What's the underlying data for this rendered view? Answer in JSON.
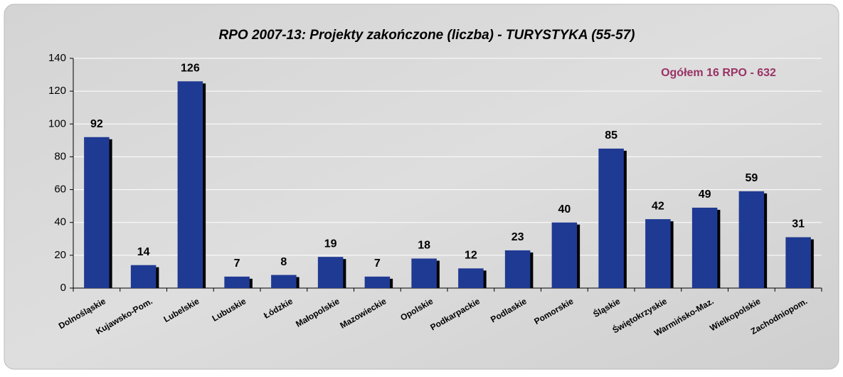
{
  "chart_data": {
    "type": "bar",
    "title": "RPO 2007-13: Projekty zakończone (liczba) - TURYSTYKA (55-57)",
    "annotation": "Ogółem 16 RPO - 632",
    "categories": [
      "Dolnośląskie",
      "Kujawsko-Pom.",
      "Lubelskie",
      "Lubuskie",
      "Łódzkie",
      "Małopolskie",
      "Mazowieckie",
      "Opolskie",
      "Podkarpackie",
      "Podlaskie",
      "Pomorskie",
      "Śląskie",
      "Świętokrzyskie",
      "Warmińsko-Maz.",
      "Wielkopolskie",
      "Zachodniopom."
    ],
    "values": [
      92,
      14,
      126,
      7,
      8,
      19,
      7,
      18,
      12,
      23,
      40,
      85,
      42,
      49,
      59,
      31
    ],
    "color": "#1f3a93",
    "ylim": [
      0,
      140
    ],
    "yticks": [
      0,
      20,
      40,
      60,
      80,
      100,
      120,
      140
    ],
    "grid": true
  }
}
